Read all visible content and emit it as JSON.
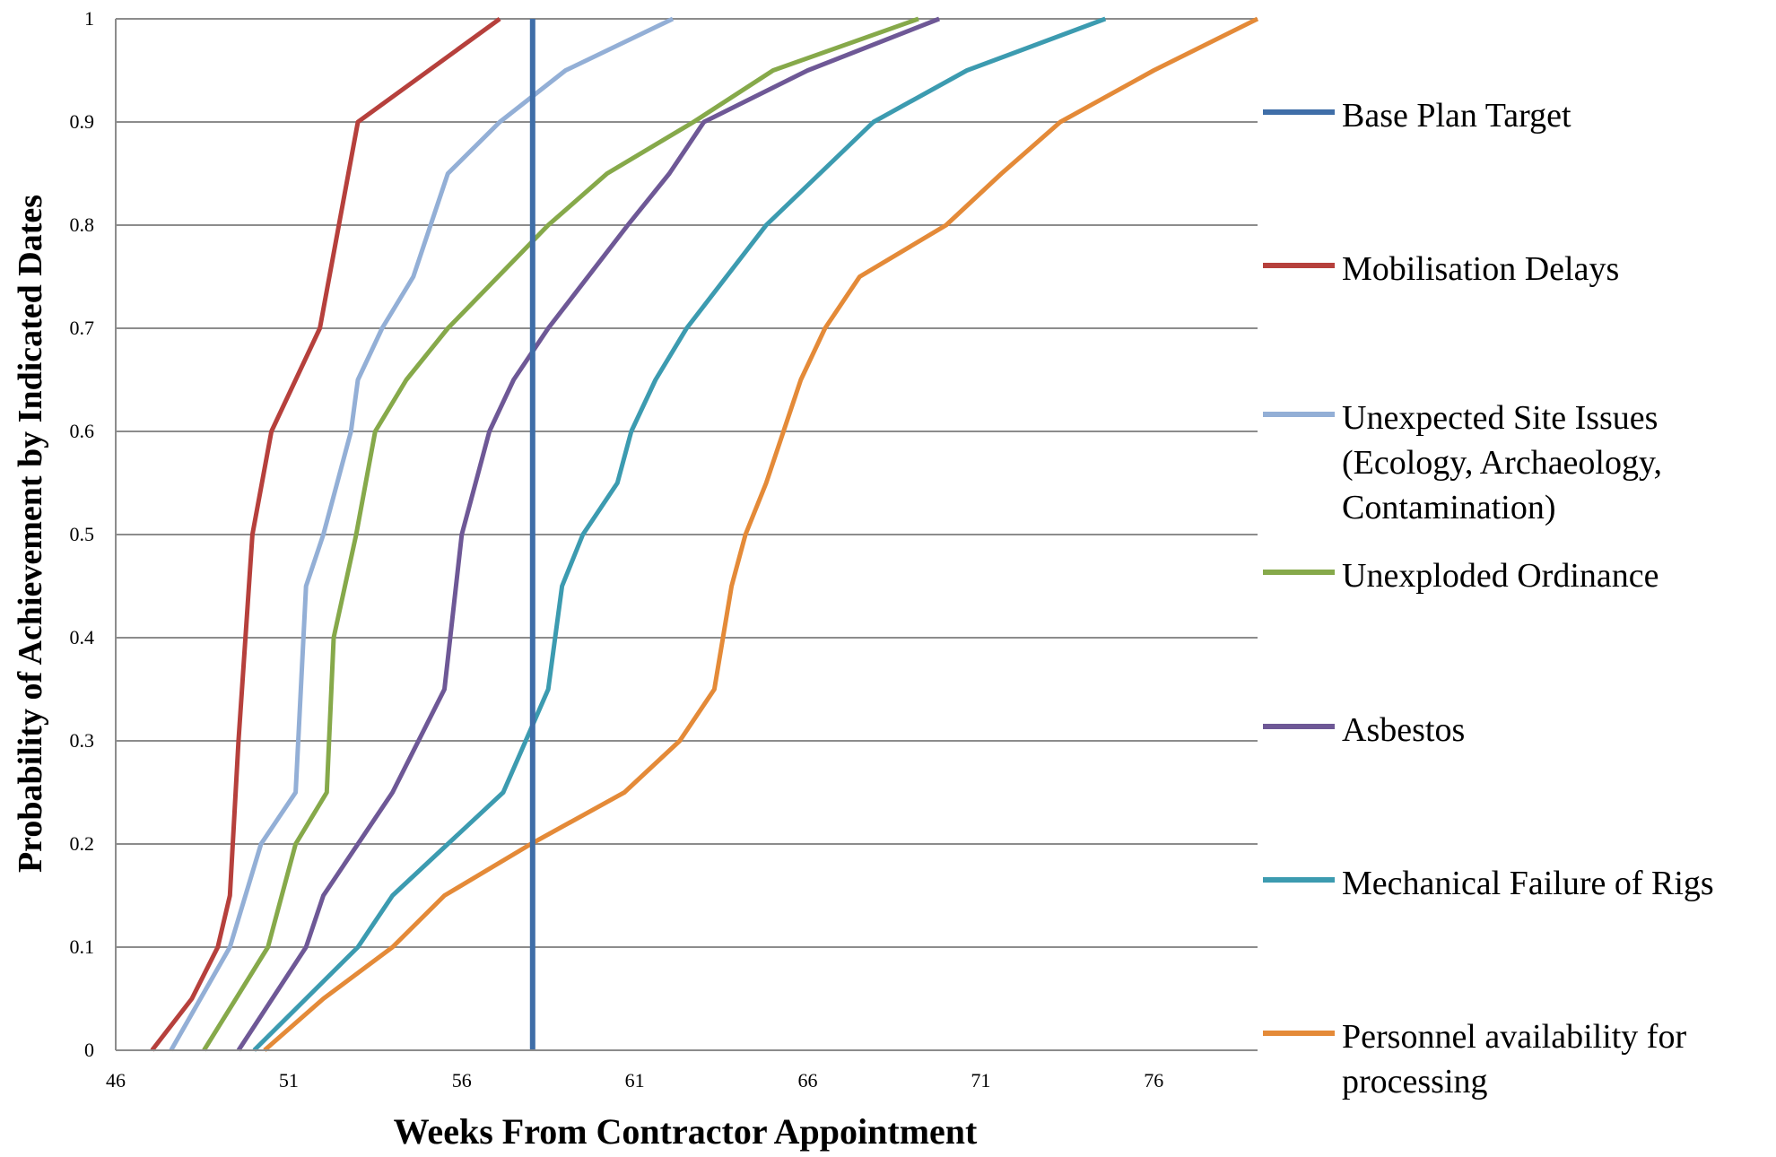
{
  "chart_data": {
    "type": "line",
    "xlabel": "Weeks From Contractor Appointment",
    "ylabel": "Probability of Achievement by Indicated Dates",
    "xlim": [
      46,
      79
    ],
    "ylim": [
      0,
      1
    ],
    "x_ticks": [
      "46",
      "51",
      "56",
      "61",
      "66",
      "71",
      "76"
    ],
    "y_ticks": [
      "0",
      "0.1",
      "0.2",
      "0.3",
      "0.4",
      "0.5",
      "0.6",
      "0.7",
      "0.8",
      "0.9",
      "1"
    ],
    "grid": "horizontal",
    "legend_position": "right",
    "series": [
      {
        "name": "Base Plan Target",
        "color": "#3F6EA8",
        "kind": "vertical",
        "x": [
          58.05,
          58.05
        ],
        "y": [
          0,
          1
        ]
      },
      {
        "name": "Mobilisation Delays",
        "color": "#B6403C",
        "x": [
          47.05,
          48.2,
          48.95,
          49.3,
          49.55,
          49.95,
          50.5,
          51.9,
          53.0,
          57.1
        ],
        "y": [
          0,
          0.05,
          0.1,
          0.15,
          0.3,
          0.5,
          0.6,
          0.7,
          0.9,
          1.0
        ]
      },
      {
        "name": "Unexpected Site Issues (Ecology, Archaeology, Contamination)",
        "color": "#93AFD6",
        "x": [
          47.6,
          49.3,
          50.2,
          51.2,
          51.5,
          52.0,
          52.8,
          53.0,
          53.7,
          54.6,
          55.6,
          57.1,
          59.0,
          62.1
        ],
        "y": [
          0,
          0.1,
          0.2,
          0.25,
          0.45,
          0.5,
          0.6,
          0.65,
          0.7,
          0.75,
          0.85,
          0.9,
          0.95,
          1.0
        ]
      },
      {
        "name": "Unexploded Ordinance",
        "color": "#86A94A",
        "x": [
          48.55,
          50.4,
          51.2,
          52.1,
          52.3,
          52.95,
          53.5,
          54.4,
          55.6,
          58.5,
          60.2,
          62.7,
          65.0,
          69.2
        ],
        "y": [
          0,
          0.1,
          0.2,
          0.25,
          0.4,
          0.5,
          0.6,
          0.65,
          0.7,
          0.8,
          0.85,
          0.9,
          0.95,
          1.0
        ]
      },
      {
        "name": "Asbestos",
        "color": "#6E5896",
        "x": [
          49.55,
          51.5,
          52.0,
          54.0,
          55.5,
          56.0,
          56.8,
          57.5,
          58.5,
          60.8,
          62.0,
          63.0,
          66.0,
          69.8
        ],
        "y": [
          0,
          0.1,
          0.15,
          0.25,
          0.35,
          0.5,
          0.6,
          0.65,
          0.7,
          0.8,
          0.85,
          0.9,
          0.95,
          1.0
        ]
      },
      {
        "name": "Mechanical Failure of Rigs",
        "color": "#3C9BB0",
        "x": [
          50.0,
          53.0,
          54.0,
          57.2,
          58.5,
          58.9,
          59.5,
          60.5,
          60.9,
          61.6,
          62.5,
          64.8,
          67.9,
          70.6,
          74.6
        ],
        "y": [
          0,
          0.1,
          0.15,
          0.25,
          0.35,
          0.45,
          0.5,
          0.55,
          0.6,
          0.65,
          0.7,
          0.8,
          0.9,
          0.95,
          1.0
        ]
      },
      {
        "name": "Personnel availability for processing",
        "color": "#E48A38",
        "x": [
          50.3,
          52.0,
          54.0,
          55.5,
          58.0,
          60.7,
          62.3,
          63.3,
          63.8,
          64.2,
          64.8,
          65.3,
          65.8,
          66.5,
          67.5,
          70.0,
          71.6,
          73.3,
          76.0,
          79.0
        ],
        "y": [
          0,
          0.05,
          0.1,
          0.15,
          0.2,
          0.25,
          0.3,
          0.35,
          0.45,
          0.5,
          0.55,
          0.6,
          0.65,
          0.7,
          0.75,
          0.8,
          0.85,
          0.9,
          0.95,
          1.0
        ]
      }
    ]
  }
}
